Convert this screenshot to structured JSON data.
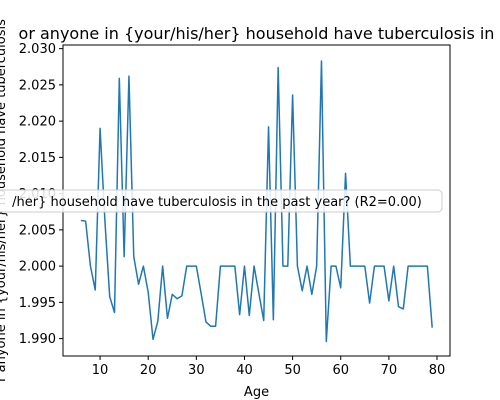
{
  "chart_data": {
    "type": "line",
    "title": "or anyone in {your/his/her} household have tuberculosis in",
    "xlabel": "Age",
    "ylabel": "r anyone in {your/his/her} household have tuberculosis",
    "xlim": [
      2.3,
      82.7
    ],
    "ylim": [
      1.9876,
      2.0305
    ],
    "xticks": [
      10,
      20,
      30,
      40,
      50,
      60,
      70,
      80
    ],
    "yticks": [
      1.99,
      1.995,
      2.0,
      2.005,
      2.01,
      2.015,
      2.02,
      2.025,
      2.03
    ],
    "ytick_labels": [
      "1.990",
      "1.995",
      "2.000",
      "2.005",
      "2.010",
      "2.015",
      "2.020",
      "2.025",
      "2.030"
    ],
    "annotation": "/her} household have tuberculosis in the past year? (R2=0.00)",
    "line_color": "#1f77b4",
    "series": [
      {
        "x": [
          6,
          7,
          8,
          9,
          10,
          11,
          12,
          13,
          14,
          15,
          16,
          17,
          18,
          19,
          20,
          21,
          22,
          23,
          24,
          25,
          26,
          27,
          28,
          29,
          30,
          31,
          32,
          33,
          34,
          35,
          36,
          37,
          38,
          39,
          40,
          41,
          42,
          43,
          44,
          45,
          46,
          47,
          48,
          49,
          50,
          51,
          52,
          53,
          54,
          55,
          56,
          57,
          58,
          59,
          60,
          61,
          62,
          63,
          64,
          65,
          66,
          67,
          68,
          69,
          70,
          71,
          72,
          73,
          74,
          75,
          76,
          77,
          78,
          79
        ],
        "y": [
          2.0063,
          2.0062,
          2.0,
          1.9967,
          2.019,
          2.0063,
          1.9958,
          1.9936,
          2.0259,
          2.0013,
          2.0262,
          2.0013,
          1.9975,
          2.0,
          1.9964,
          1.9899,
          1.9924,
          2.0,
          1.9928,
          1.9961,
          1.9955,
          1.9959,
          2.0,
          2.0,
          2.0,
          1.9962,
          1.9923,
          1.9917,
          1.9917,
          2.0,
          2.0,
          2.0,
          2.0,
          1.9933,
          2.0,
          1.9932,
          2.0,
          1.9962,
          1.9925,
          2.0192,
          1.9926,
          2.0274,
          2.0,
          2.0,
          2.0236,
          2.0,
          1.9966,
          2.0,
          1.9961,
          2.0,
          2.0283,
          1.9896,
          2.0,
          2.0,
          1.997,
          2.0128,
          2.0,
          2.0,
          2.0,
          2.0,
          1.9949,
          2.0,
          2.0,
          2.0,
          1.9952,
          2.0,
          1.9944,
          1.9941,
          2.0,
          2.0,
          2.0,
          2.0,
          2.0,
          1.9915
        ]
      }
    ]
  }
}
